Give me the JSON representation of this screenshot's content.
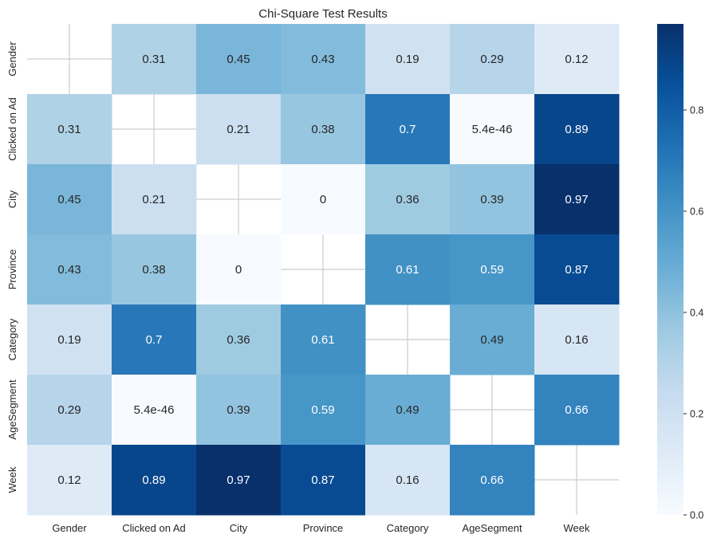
{
  "chart_data": {
    "type": "heatmap",
    "title": "Chi-Square Test Results",
    "xlabel": "",
    "ylabel": "",
    "x_categories": [
      "Gender",
      "Clicked on Ad",
      "City",
      "Province",
      "Category",
      "AgeSegment",
      "Week"
    ],
    "y_categories": [
      "Gender",
      "Clicked on Ad",
      "City",
      "Province",
      "Category",
      "AgeSegment",
      "Week"
    ],
    "values": [
      [
        null,
        0.31,
        0.45,
        0.43,
        0.19,
        0.29,
        0.12
      ],
      [
        0.31,
        null,
        0.21,
        0.38,
        0.7,
        5.4e-46,
        0.89
      ],
      [
        0.45,
        0.21,
        null,
        0,
        0.36,
        0.39,
        0.97
      ],
      [
        0.43,
        0.38,
        0,
        null,
        0.61,
        0.59,
        0.87
      ],
      [
        0.19,
        0.7,
        0.36,
        0.61,
        null,
        0.49,
        0.16
      ],
      [
        0.29,
        5.4e-46,
        0.39,
        0.59,
        0.49,
        null,
        0.66
      ],
      [
        0.12,
        0.89,
        0.97,
        0.87,
        0.16,
        0.66,
        null
      ]
    ],
    "annotations": [
      [
        "",
        "0.31",
        "0.45",
        "0.43",
        "0.19",
        "0.29",
        "0.12"
      ],
      [
        "0.31",
        "",
        "0.21",
        "0.38",
        "0.7",
        "5.4e-46",
        "0.89"
      ],
      [
        "0.45",
        "0.21",
        "",
        "0",
        "0.36",
        "0.39",
        "0.97"
      ],
      [
        "0.43",
        "0.38",
        "0",
        "",
        "0.61",
        "0.59",
        "0.87"
      ],
      [
        "0.19",
        "0.7",
        "0.36",
        "0.61",
        "",
        "0.49",
        "0.16"
      ],
      [
        "0.29",
        "5.4e-46",
        "0.39",
        "0.59",
        "0.49",
        "",
        "0.66"
      ],
      [
        "0.12",
        "0.89",
        "0.97",
        "0.87",
        "0.16",
        "0.66",
        ""
      ]
    ],
    "colormap": "Blues",
    "vmin": 0,
    "vmax": 0.97,
    "colorbar_ticks": [
      0.0,
      0.2,
      0.4,
      0.6,
      0.8
    ],
    "colorbar_tick_labels": [
      "0.0",
      "0.2",
      "0.4",
      "0.6",
      "0.8"
    ],
    "grid": true,
    "diagonal_masked": true,
    "colors": {
      "cmap_stops": [
        "#f7fbff",
        "#deebf7",
        "#c6dbef",
        "#9ecae1",
        "#6baed6",
        "#4292c6",
        "#2171b5",
        "#08519c",
        "#08306b"
      ],
      "grid": "#cccccc",
      "text_dark": "#262626",
      "text_light": "#ffffff"
    }
  }
}
